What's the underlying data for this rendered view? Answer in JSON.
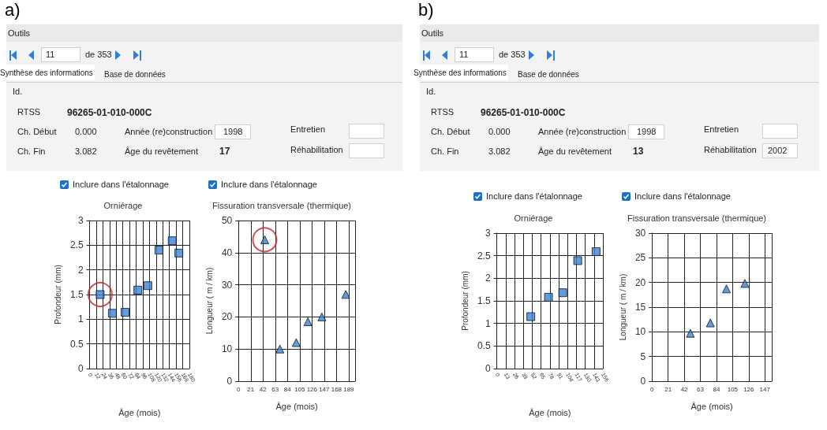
{
  "chart_data": [
    {
      "type": "other",
      "title": "a)",
      "annotations": [
        "Outils",
        "11",
        "de 353",
        "Synthèse des informations",
        "Base de données",
        "Id.",
        "RTSS",
        "96265-01-010-000C",
        "Ch. Début",
        "0.000",
        "Année (re)construction",
        "1998",
        "Entretien",
        null,
        "Ch. Fin",
        "3.082",
        "Âge du revêtement",
        "17",
        "Réhabilitation",
        null,
        "Inclure dans l'étalonnage",
        "Inclure dans l'étalonnage"
      ]
    },
    {
      "type": "scatter",
      "title": "Orniérage",
      "xlabel": "Âge (mois)",
      "ylabel": "Profondeur (mm)",
      "xlim": [
        0,
        180
      ],
      "xticks": [
        0,
        12,
        24,
        36,
        48,
        60,
        72,
        84,
        96,
        108,
        120,
        132,
        144,
        156,
        168,
        180
      ],
      "ylim": [
        0,
        3
      ],
      "yticks": [
        0,
        0.5,
        1,
        1.5,
        2,
        2.5,
        3
      ],
      "grid": true,
      "series": [
        {
          "marker": "square",
          "color": "#3b82d8",
          "x": [
            19,
            41,
            64,
            87,
            105,
            125,
            149,
            161
          ],
          "values": [
            1.5,
            1.12,
            1.14,
            1.59,
            1.68,
            2.4,
            2.59,
            2.34
          ]
        },
        {
          "marker": "circle",
          "color": "#c0282d",
          "x": [
            19
          ],
          "values": [
            1.5
          ]
        }
      ]
    },
    {
      "type": "scatter",
      "title": "Fissuration transversale (thermique)",
      "xlabel": "Âge (mois)",
      "ylabel": "Longueur ( m / km)",
      "xlim": [
        0,
        200
      ],
      "xticks": [
        0,
        21,
        42,
        63,
        84,
        105,
        126,
        147,
        168,
        189
      ],
      "ylim": [
        0,
        50
      ],
      "yticks": [
        0,
        10,
        20,
        30,
        40,
        50
      ],
      "grid": true,
      "series": [
        {
          "marker": "triangle",
          "color": "#3b82d8",
          "x": [
            45,
            71,
            99,
            119,
            143,
            184
          ],
          "values": [
            44,
            10,
            12,
            18.5,
            20,
            27
          ]
        },
        {
          "marker": "circle",
          "color": "#c0282d",
          "x": [
            45
          ],
          "values": [
            44
          ]
        }
      ]
    },
    {
      "type": "other",
      "title": "b)",
      "annotations": [
        "Outils",
        "11",
        "de 353",
        "Synthèse des informations",
        "Base de données",
        "Id.",
        "RTSS",
        "96265-01-010-000C",
        "Ch. Début",
        "0.000",
        "Année (re)construction",
        "1998",
        "Entretien",
        null,
        "Ch. Fin",
        "3.082",
        "Âge du revêtement",
        "13",
        "Réhabilitation",
        "2002",
        "Inclure dans l'étalonnage",
        "Inclure dans l'étalonnage"
      ]
    },
    {
      "type": "scatter",
      "title": "Orniérage",
      "xlabel": "Âge (mois)",
      "ylabel": "Profondeur (mm)",
      "xlim": [
        0,
        156
      ],
      "xticks": [
        0,
        13,
        26,
        39,
        52,
        65,
        78,
        91,
        104,
        117,
        130,
        143,
        156
      ],
      "ylim": [
        0,
        3
      ],
      "yticks": [
        0,
        0.5,
        1,
        1.5,
        2,
        2.5,
        3
      ],
      "grid": true,
      "series": [
        {
          "marker": "square",
          "color": "#3b82d8",
          "x": [
            50,
            76,
            97,
            119,
            146
          ],
          "values": [
            1.15,
            1.58,
            1.68,
            2.39,
            2.59
          ]
        }
      ]
    },
    {
      "type": "scatter",
      "title": "Fissuration transversale (thermique)",
      "xlabel": "Âge (mois)",
      "ylabel": "Longueur ( m / km)",
      "xlim": [
        0,
        156
      ],
      "xticks": [
        0,
        21,
        42,
        63,
        84,
        105,
        126,
        147
      ],
      "ylim": [
        0,
        30
      ],
      "yticks": [
        0,
        5,
        10,
        15,
        20,
        25,
        30
      ],
      "grid": true,
      "series": [
        {
          "marker": "triangle",
          "color": "#3b82d8",
          "x": [
            50,
            76,
            97,
            121
          ],
          "values": [
            9.7,
            11.8,
            18.7,
            19.8
          ]
        }
      ]
    }
  ]
}
